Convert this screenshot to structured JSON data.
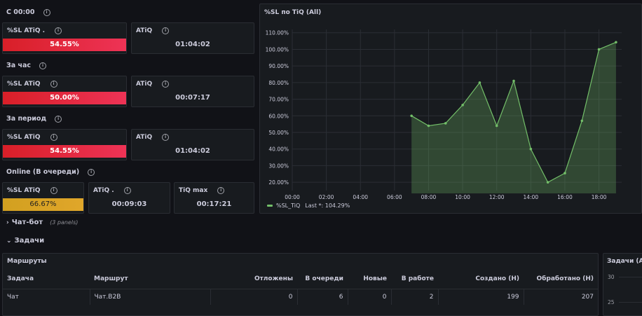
{
  "rows": {
    "since_midnight": "С 00:00",
    "per_hour": "За час",
    "per_period": "За период",
    "online": "Online (В очереди)"
  },
  "stats": {
    "r1_sl_title": "%SL ATiQ .",
    "r1_sl_value": "54.55%",
    "r1_atiq_title": "ATiQ",
    "r1_atiq_value": "01:04:02",
    "r2_sl_title": "%SL ATiQ",
    "r2_sl_value": "50.00%",
    "r2_atiq_title": "ATiQ",
    "r2_atiq_value": "00:07:17",
    "r3_sl_title": "%SL ATiQ",
    "r3_sl_value": "54.55%",
    "r3_atiq_title": "ATiQ",
    "r3_atiq_value": "01:04:02",
    "r4_sl_title": "%SL ATiQ",
    "r4_sl_value": "66.67%",
    "r4_atiq_title": "ATiQ .",
    "r4_atiq_value": "00:09:03",
    "r4_tiq_title": "TiQ max",
    "r4_tiq_value": "00:17:21"
  },
  "sections": {
    "chatbot": "Чат-бот",
    "chatbot_count": "(3 panels)",
    "tasks": "Задачи",
    "collapsed_icon": "chevron-right-icon",
    "expanded_icon": "chevron-down-icon"
  },
  "routes": {
    "title": "Маршруты",
    "columns": [
      "Задача",
      "Маршрут",
      "Отложены",
      "В очереди",
      "Новые",
      "В работе",
      "Создано (Н)",
      "Обработано (Н)"
    ],
    "rows": [
      [
        "Чат",
        "Чат.B2B",
        "0",
        "6",
        "0",
        "2",
        "199",
        "207"
      ]
    ]
  },
  "tasks_panel": {
    "title": "Задачи (All",
    "ticks": [
      "30",
      "25"
    ]
  },
  "chart_data": {
    "type": "area",
    "title": "%SL по TiQ (All)",
    "x": [
      "07:00",
      "08:00",
      "09:00",
      "10:00",
      "11:00",
      "12:00",
      "13:00",
      "14:00",
      "15:00",
      "16:00",
      "17:00",
      "18:00",
      "19:00"
    ],
    "x_ticks": [
      "00:00",
      "02:00",
      "04:00",
      "06:00",
      "08:00",
      "10:00",
      "12:00",
      "14:00",
      "16:00",
      "18:00"
    ],
    "x_range": [
      "00:00",
      "19:20"
    ],
    "y_ticks": [
      "20.00%",
      "30.00%",
      "40.00%",
      "50.00%",
      "60.00%",
      "70.00%",
      "80.00%",
      "90.00%",
      "100.00%",
      "110.00%"
    ],
    "ylim": [
      15,
      112
    ],
    "series": [
      {
        "name": "%SL_TiQ",
        "values": [
          60,
          54,
          55.5,
          66.5,
          80,
          54,
          81,
          40,
          20,
          25.5,
          57,
          100,
          104.29
        ],
        "color": "#73bf69"
      }
    ],
    "legend": {
      "label": "%SL_TiQ",
      "stat": "Last *: 104.29%",
      "placement": "bottom-left"
    },
    "grid": true
  },
  "colors": {
    "red": "#e02f44",
    "yellow": "#d4a020",
    "green": "#73bf69",
    "bg": "#111217",
    "panel": "#181b1f"
  }
}
